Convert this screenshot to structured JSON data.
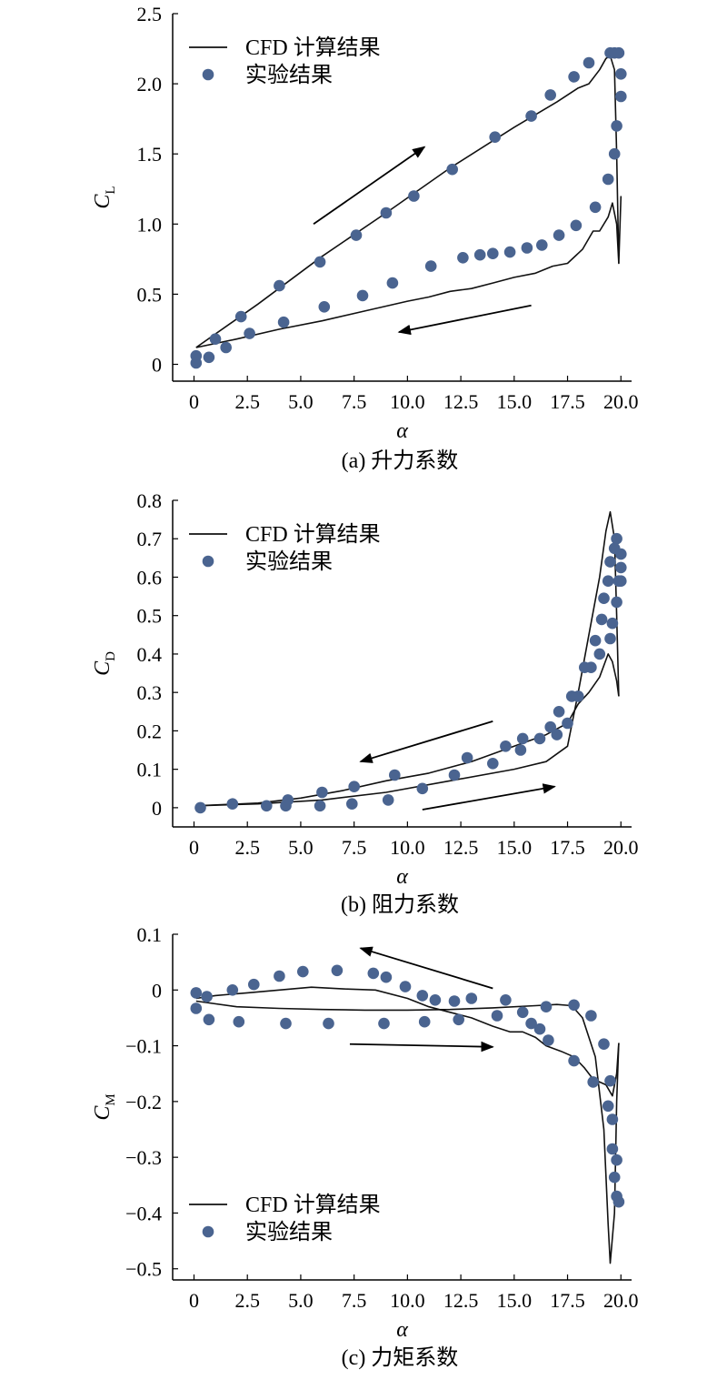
{
  "colors": {
    "curve": "#111111",
    "marker": "#4a6490",
    "axis": "#000000"
  },
  "chart_data": [
    {
      "type": "scatter",
      "caption": "(a) 升力系数",
      "xlabel": "α",
      "ylabel": "C",
      "ylabel_sub": "L",
      "xlim": [
        -1,
        20.5
      ],
      "ylim": [
        -0.12,
        2.5
      ],
      "xticks": [
        "0",
        "2.5",
        "5.0",
        "7.5",
        "10.0",
        "12.5",
        "15.0",
        "17.5",
        "20.0"
      ],
      "yticks": [
        "0",
        "0.5",
        "1.0",
        "1.5",
        "2.0",
        "2.5"
      ],
      "legend": {
        "position": "top-left",
        "line_label": "CFD 计算结果",
        "marker_label": "实验结果"
      },
      "series": [
        {
          "name": "CFD 计算结果",
          "kind": "line",
          "x": [
            0.1,
            3,
            6,
            9,
            12,
            15,
            17,
            18,
            18.5,
            19,
            19.3,
            19.5,
            19.7,
            19.8,
            19.9,
            20.0
          ],
          "y": [
            0.12,
            0.43,
            0.77,
            1.08,
            1.4,
            1.69,
            1.87,
            1.97,
            2.0,
            2.1,
            2.18,
            2.2,
            2.1,
            1.5,
            0.72,
            1.2
          ]
        },
        {
          "name": "CFD 计算结果",
          "kind": "line",
          "x": [
            19.9,
            19.8,
            19.6,
            19.4,
            19.0,
            18.7,
            18.2,
            17.5,
            16.8,
            16,
            15,
            14,
            13,
            12,
            11,
            10,
            8,
            6,
            4,
            2,
            0.1
          ],
          "y": [
            0.72,
            1.0,
            1.15,
            1.05,
            0.95,
            0.95,
            0.82,
            0.72,
            0.7,
            0.65,
            0.62,
            0.58,
            0.54,
            0.52,
            0.48,
            0.45,
            0.38,
            0.31,
            0.25,
            0.18,
            0.12
          ]
        },
        {
          "name": "实验结果",
          "kind": "scatter",
          "x": [
            0.1,
            0.1,
            0.7,
            1.0,
            1.5,
            2.2,
            2.6,
            4.0,
            4.2,
            5.9,
            6.1,
            7.6,
            7.9,
            9.0,
            9.3,
            10.3,
            11.1,
            12.1,
            12.6,
            13.4,
            14.0,
            14.1,
            14.8,
            15.6,
            15.8,
            16.3,
            16.7,
            17.1,
            17.8,
            17.9,
            18.5,
            18.8,
            19.4,
            19.5,
            19.7,
            19.7,
            19.8,
            19.9,
            20.0,
            20.0
          ],
          "y": [
            0.01,
            0.06,
            0.05,
            0.18,
            0.12,
            0.34,
            0.22,
            0.56,
            0.3,
            0.73,
            0.41,
            0.92,
            0.49,
            1.08,
            0.58,
            1.2,
            0.7,
            1.39,
            0.76,
            0.78,
            0.79,
            1.62,
            0.8,
            0.83,
            1.77,
            0.85,
            1.92,
            0.92,
            2.05,
            0.99,
            2.15,
            1.12,
            1.32,
            2.22,
            1.5,
            2.22,
            1.7,
            2.22,
            2.07,
            1.91
          ]
        }
      ],
      "arrows": [
        {
          "from": [
            5.6,
            1.0
          ],
          "to": [
            10.8,
            1.55
          ]
        },
        {
          "from": [
            15.8,
            0.42
          ],
          "to": [
            9.6,
            0.23
          ]
        }
      ]
    },
    {
      "type": "scatter",
      "caption": "(b) 阻力系数",
      "xlabel": "α",
      "ylabel": "C",
      "ylabel_sub": "D",
      "xlim": [
        -1,
        20.5
      ],
      "ylim": [
        -0.05,
        0.8
      ],
      "xticks": [
        "0",
        "2.5",
        "5.0",
        "7.5",
        "10.0",
        "12.5",
        "15.0",
        "17.5",
        "20.0"
      ],
      "yticks": [
        "0",
        "0.1",
        "0.2",
        "0.3",
        "0.4",
        "0.5",
        "0.6",
        "0.7",
        "0.8"
      ],
      "legend": {
        "position": "top-left",
        "line_label": "CFD 计算结果",
        "marker_label": "实验结果"
      },
      "series": [
        {
          "name": "CFD 计算结果",
          "kind": "line",
          "x": [
            0.1,
            3,
            6,
            9,
            12,
            15,
            16.5,
            17.5,
            18,
            18.5,
            19,
            19.3,
            19.5,
            19.7,
            19.8,
            19.9
          ],
          "y": [
            0.005,
            0.01,
            0.02,
            0.04,
            0.07,
            0.1,
            0.12,
            0.16,
            0.3,
            0.45,
            0.6,
            0.72,
            0.77,
            0.7,
            0.5,
            0.29
          ]
        },
        {
          "name": "CFD 计算结果",
          "kind": "line",
          "x": [
            19.9,
            19.8,
            19.6,
            19.4,
            19.0,
            18.5,
            18.0,
            17.5,
            16.5,
            15,
            13,
            11,
            9,
            7,
            5,
            3,
            0.1
          ],
          "y": [
            0.29,
            0.33,
            0.38,
            0.4,
            0.34,
            0.3,
            0.27,
            0.22,
            0.19,
            0.16,
            0.12,
            0.09,
            0.07,
            0.045,
            0.025,
            0.012,
            0.005
          ]
        },
        {
          "name": "实验结果",
          "kind": "scatter",
          "x": [
            0.3,
            1.8,
            3.4,
            4.3,
            4.4,
            5.9,
            6.0,
            7.4,
            7.5,
            9.1,
            9.4,
            10.7,
            12.2,
            12.8,
            14.0,
            14.6,
            15.3,
            15.4,
            16.2,
            16.7,
            17.0,
            17.1,
            17.5,
            17.7,
            18.0,
            18.3,
            18.6,
            18.8,
            19.0,
            19.1,
            19.2,
            19.4,
            19.5,
            19.5,
            19.6,
            19.7,
            19.8,
            19.8,
            19.9,
            20.0,
            20.0,
            20.0
          ],
          "y": [
            0.0,
            0.01,
            0.005,
            0.005,
            0.02,
            0.005,
            0.04,
            0.01,
            0.055,
            0.02,
            0.085,
            0.05,
            0.085,
            0.13,
            0.115,
            0.16,
            0.15,
            0.18,
            0.18,
            0.21,
            0.19,
            0.25,
            0.22,
            0.29,
            0.29,
            0.365,
            0.365,
            0.435,
            0.4,
            0.49,
            0.545,
            0.59,
            0.44,
            0.64,
            0.48,
            0.675,
            0.535,
            0.7,
            0.59,
            0.66,
            0.625,
            0.59
          ]
        }
      ],
      "arrows": [
        {
          "from": [
            14.0,
            0.225
          ],
          "to": [
            7.8,
            0.12
          ]
        },
        {
          "from": [
            10.7,
            -0.005
          ],
          "to": [
            16.9,
            0.055
          ]
        }
      ]
    },
    {
      "type": "scatter",
      "caption": "(c) 力矩系数",
      "xlabel": "α",
      "ylabel": "C",
      "ylabel_sub": "M",
      "xlim": [
        -1,
        20.5
      ],
      "ylim": [
        -0.52,
        0.1
      ],
      "xticks": [
        "0",
        "2.5",
        "5.0",
        "7.5",
        "10.0",
        "12.5",
        "15.0",
        "17.5",
        "20.0"
      ],
      "yticks": [
        "0.1",
        "0",
        "−0.1",
        "−0.2",
        "−0.3",
        "−0.4",
        "−0.5"
      ],
      "ytick_values": [
        0.1,
        0,
        -0.1,
        -0.2,
        -0.3,
        -0.4,
        -0.5
      ],
      "legend": {
        "position": "bottom-left",
        "line_label": "CFD 计算结果",
        "marker_label": "实验结果"
      },
      "series": [
        {
          "name": "CFD 计算结果",
          "kind": "line",
          "x": [
            0.1,
            2,
            4,
            6,
            8,
            10,
            12,
            14,
            16,
            17,
            17.7,
            18.2,
            18.8,
            19.2,
            19.4,
            19.5,
            19.7,
            19.8,
            19.9
          ],
          "y": [
            -0.02,
            -0.03,
            -0.033,
            -0.035,
            -0.036,
            -0.036,
            -0.035,
            -0.032,
            -0.028,
            -0.026,
            -0.028,
            -0.05,
            -0.12,
            -0.25,
            -0.42,
            -0.49,
            -0.4,
            -0.2,
            -0.095
          ]
        },
        {
          "name": "CFD 计算结果",
          "kind": "line",
          "x": [
            19.9,
            19.8,
            19.6,
            19.3,
            19.0,
            18.7,
            18.3,
            17.8,
            17.2,
            16.5,
            16.0,
            15.4,
            14.8,
            14.0,
            13.0,
            12.0,
            11.0,
            10.0,
            8.5,
            7,
            5.5,
            4,
            2.5,
            1.0,
            0.1
          ],
          "y": [
            -0.095,
            -0.15,
            -0.19,
            -0.17,
            -0.165,
            -0.16,
            -0.14,
            -0.12,
            -0.11,
            -0.1,
            -0.085,
            -0.075,
            -0.075,
            -0.065,
            -0.05,
            -0.04,
            -0.03,
            -0.015,
            0.0,
            0.002,
            0.005,
            0.0,
            -0.005,
            -0.01,
            -0.015
          ]
        },
        {
          "name": "实验结果",
          "kind": "scatter",
          "x": [
            0.1,
            0.1,
            0.6,
            0.7,
            1.8,
            2.1,
            2.8,
            4.0,
            4.3,
            5.1,
            6.3,
            6.7,
            8.4,
            8.9,
            9.0,
            9.9,
            10.7,
            10.8,
            11.3,
            12.2,
            12.4,
            13.0,
            14.2,
            14.6,
            15.4,
            15.8,
            16.2,
            16.5,
            16.6,
            17.8,
            17.8,
            18.6,
            18.7,
            19.2,
            19.4,
            19.5,
            19.6,
            19.6,
            19.7,
            19.8,
            19.8,
            19.9
          ],
          "y": [
            -0.005,
            -0.033,
            -0.012,
            -0.053,
            0.0,
            -0.057,
            0.01,
            0.025,
            -0.06,
            0.033,
            -0.06,
            0.035,
            0.03,
            -0.06,
            0.023,
            0.006,
            -0.01,
            -0.057,
            -0.018,
            -0.02,
            -0.053,
            -0.015,
            -0.046,
            -0.018,
            -0.04,
            -0.06,
            -0.07,
            -0.03,
            -0.09,
            -0.027,
            -0.127,
            -0.046,
            -0.165,
            -0.097,
            -0.208,
            -0.163,
            -0.232,
            -0.285,
            -0.336,
            -0.305,
            -0.37,
            -0.38
          ]
        }
      ],
      "arrows": [
        {
          "from": [
            14.0,
            0.003
          ],
          "to": [
            7.8,
            0.075
          ]
        },
        {
          "from": [
            7.3,
            -0.097
          ],
          "to": [
            14.0,
            -0.102
          ]
        }
      ]
    }
  ]
}
